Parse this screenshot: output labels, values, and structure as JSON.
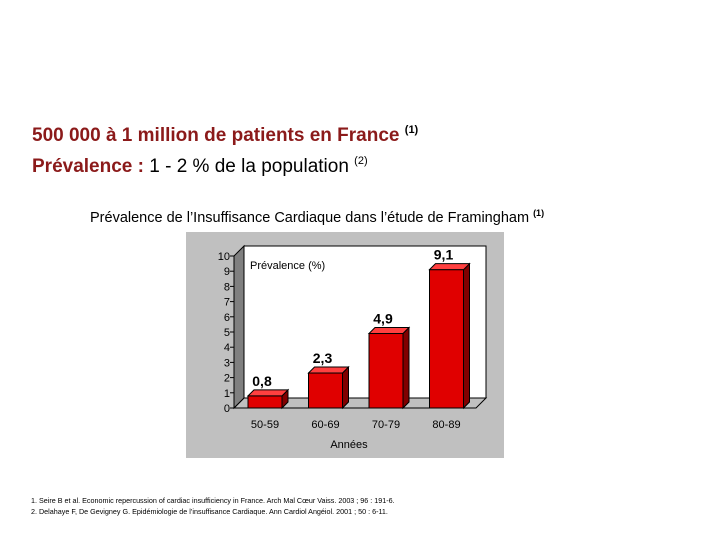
{
  "header": {
    "line1_text": "500 000 à 1 million de patients en France",
    "line1_ref": "(1)",
    "line2_label": "Prévalence :",
    "line2_value": "1 - 2 % de la population",
    "line2_ref": "(2)"
  },
  "chart_data": {
    "type": "bar",
    "title": "Prévalence de l’Insuffisance Cardiaque dans l’étude de Framingham",
    "title_ref": "(1)",
    "ylabel": "Prévalence (%)",
    "xlabel": "Années",
    "categories": [
      "50-59",
      "60-69",
      "70-79",
      "80-89"
    ],
    "values": [
      0.8,
      2.3,
      4.9,
      9.1
    ],
    "data_labels": [
      "0,8",
      "2,3",
      "4,9",
      "9,1"
    ],
    "ylim": [
      0,
      10
    ],
    "yticks": [
      "0",
      "1",
      "2",
      "3",
      "4",
      "5",
      "6",
      "7",
      "8",
      "9",
      "10"
    ],
    "bar_color": "#e00000",
    "bar_side_color": "#800000",
    "panel_color": "#c0c0c0",
    "grid": false,
    "three_d": true
  },
  "references": [
    "1. Seire B et al. Economic repercussion of cardiac insufficiency in France. Arch Mal Cœur Vaiss. 2003 ; 96 : 191-6.",
    "2. Delahaye F, De Gevigney G. Epidémiologie de l’insuffisance Cardiaque. Ann Cardiol Angéiol. 2001 ; 50 : 6-11."
  ]
}
